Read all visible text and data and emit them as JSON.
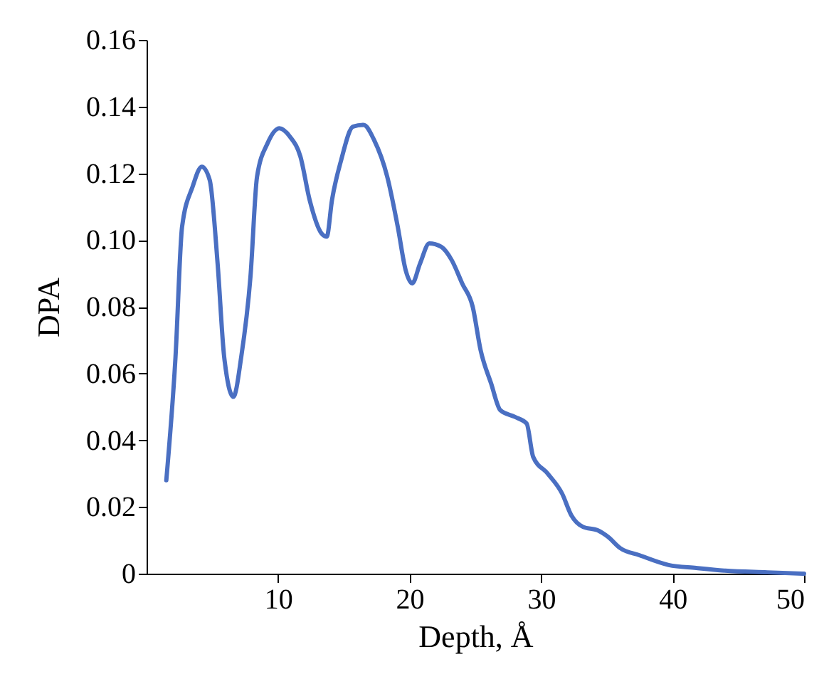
{
  "chart_data": {
    "type": "line",
    "xlabel": "Depth, Å",
    "ylabel": "DPA",
    "xlim": [
      0,
      50
    ],
    "xticks": [
      10,
      20,
      30,
      40,
      50
    ],
    "ylim": [
      0,
      0.16
    ],
    "yticks": [
      0,
      0.02,
      0.04,
      0.06,
      0.08,
      {
        "value": 0.1,
        "label": "0.10"
      },
      0.12,
      0.14,
      0.16
    ],
    "grid": false,
    "line_style": "solid",
    "marker": "none",
    "series": [
      {
        "color": "#4a6fc2",
        "x": [
          1.5,
          2.2,
          2.7,
          3.5,
          4.2,
          4.8,
          5.4,
          5.9,
          6.6,
          7.2,
          7.9,
          8.4,
          9.2,
          10.1,
          10.9,
          11.7,
          12.4,
          13.3,
          13.7,
          14.1,
          14.8,
          15.7,
          16.5,
          17.3,
          18.3,
          19.1,
          19.7,
          20.2,
          20.8,
          21.5,
          22.4,
          23.2,
          24.0,
          24.8,
          25.4,
          26.2,
          26.9,
          28.0,
          28.9,
          29.4,
          30.5,
          31.6,
          32.3,
          33.2,
          34.3,
          35.1,
          36.0,
          37.5,
          39.7,
          41.8,
          44.0,
          47.2,
          50
        ],
        "values": [
          0.028,
          0.065,
          0.104,
          0.116,
          0.122,
          0.118,
          0.093,
          0.065,
          0.053,
          0.065,
          0.089,
          0.119,
          0.129,
          0.1335,
          0.131,
          0.125,
          0.112,
          0.102,
          0.101,
          0.112,
          0.124,
          0.134,
          0.1345,
          0.13,
          0.119,
          0.104,
          0.091,
          0.087,
          0.093,
          0.099,
          0.098,
          0.094,
          0.087,
          0.08,
          0.067,
          0.057,
          0.049,
          0.047,
          0.045,
          0.035,
          0.03,
          0.024,
          0.0175,
          0.014,
          0.013,
          0.011,
          0.0077,
          0.0055,
          0.0026,
          0.0017,
          0.0009,
          0.0004,
          0.0
        ]
      }
    ]
  }
}
